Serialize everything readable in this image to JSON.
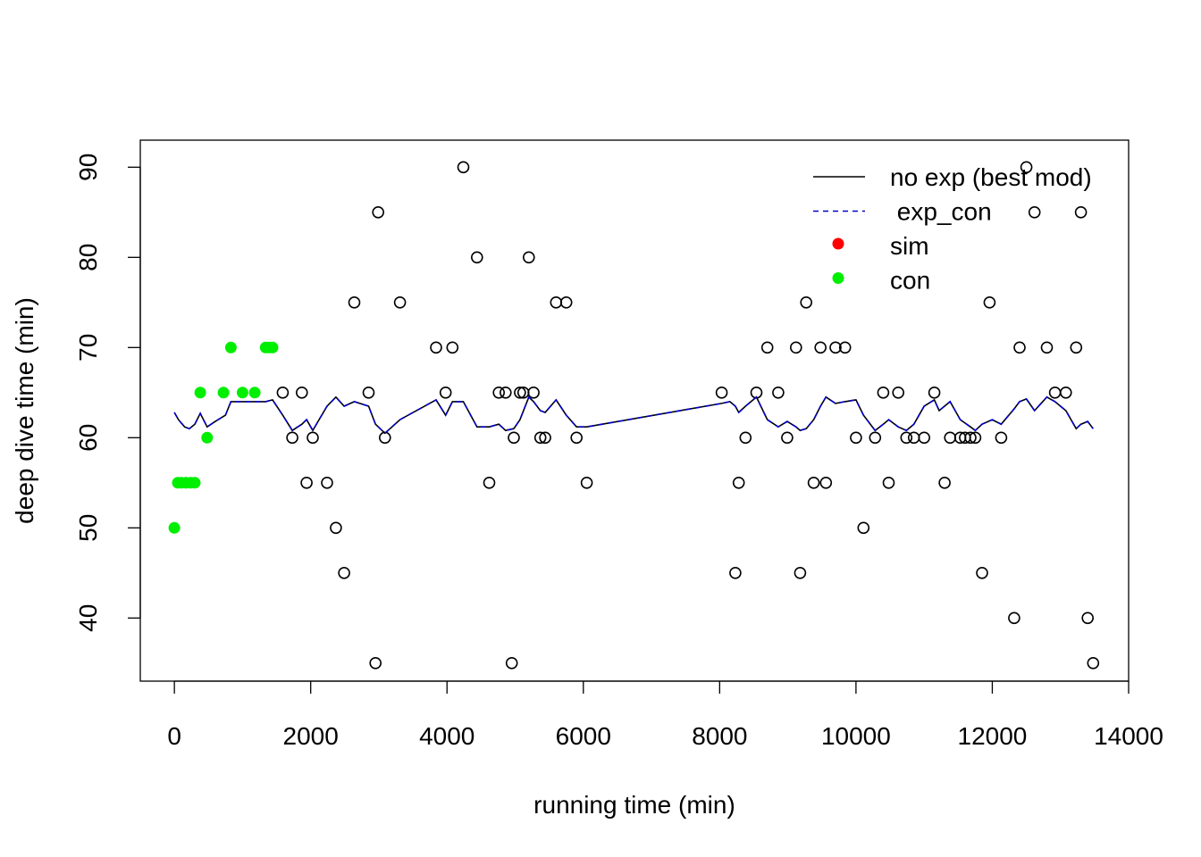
{
  "chart_data": {
    "type": "scatter",
    "title": "",
    "xlabel": "running time (min)",
    "ylabel": "deep dive time (min)",
    "xlim": [
      -500,
      14000
    ],
    "ylim": [
      33,
      93
    ],
    "xticks": [
      "0",
      "2000",
      "4000",
      "6000",
      "8000",
      "10000",
      "12000",
      "14000"
    ],
    "yticks": [
      "40",
      "50",
      "60",
      "70",
      "80",
      "90"
    ],
    "grid": false,
    "legend_position": "top-right",
    "legend": [
      {
        "label": "no exp (best mod)",
        "kind": "line",
        "color": "#000000"
      },
      {
        "label": " exp_con",
        "kind": "dashed",
        "color": "#0000cd"
      },
      {
        "label": "sim",
        "kind": "dot",
        "color": "#ff0000"
      },
      {
        "label": "con",
        "kind": "dot",
        "color": "#00ee00"
      }
    ],
    "series": [
      {
        "name": "con",
        "kind": "filled-points",
        "color": "#00ee00",
        "points": [
          [
            0,
            50
          ],
          [
            50,
            55
          ],
          [
            100,
            55
          ],
          [
            170,
            55
          ],
          [
            240,
            55
          ],
          [
            300,
            55
          ],
          [
            380,
            65
          ],
          [
            480,
            60
          ],
          [
            720,
            65
          ],
          [
            830,
            70
          ],
          [
            1000,
            65
          ],
          [
            1180,
            65
          ],
          [
            1340,
            70
          ],
          [
            1390,
            70
          ],
          [
            1440,
            70
          ]
        ]
      },
      {
        "kind": "open-points",
        "color": "#000000",
        "points": [
          [
            1590,
            65
          ],
          [
            1730,
            60
          ],
          [
            1870,
            65
          ],
          [
            1940,
            55
          ],
          [
            2030,
            60
          ],
          [
            2240,
            55
          ],
          [
            2370,
            50
          ],
          [
            2490,
            45
          ],
          [
            2640,
            75
          ],
          [
            2850,
            65
          ],
          [
            2950,
            35
          ],
          [
            2990,
            85
          ],
          [
            3090,
            60
          ],
          [
            3310,
            75
          ],
          [
            3840,
            70
          ],
          [
            3980,
            65
          ],
          [
            4080,
            70
          ],
          [
            4240,
            90
          ],
          [
            4440,
            80
          ],
          [
            4620,
            55
          ],
          [
            4760,
            65
          ],
          [
            4860,
            65
          ],
          [
            4950,
            35
          ],
          [
            4980,
            60
          ],
          [
            5070,
            65
          ],
          [
            5120,
            65
          ],
          [
            5200,
            80
          ],
          [
            5270,
            65
          ],
          [
            5370,
            60
          ],
          [
            5440,
            60
          ],
          [
            5600,
            75
          ],
          [
            5750,
            75
          ],
          [
            5900,
            60
          ],
          [
            6050,
            55
          ],
          [
            8030,
            65
          ],
          [
            8230,
            45
          ],
          [
            8280,
            55
          ],
          [
            8380,
            60
          ],
          [
            8540,
            65
          ],
          [
            8700,
            70
          ],
          [
            8860,
            65
          ],
          [
            8990,
            60
          ],
          [
            9120,
            70
          ],
          [
            9180,
            45
          ],
          [
            9270,
            75
          ],
          [
            9380,
            55
          ],
          [
            9480,
            70
          ],
          [
            9560,
            55
          ],
          [
            9700,
            70
          ],
          [
            9840,
            70
          ],
          [
            10000,
            60
          ],
          [
            10110,
            50
          ],
          [
            10280,
            60
          ],
          [
            10400,
            65
          ],
          [
            10480,
            55
          ],
          [
            10620,
            65
          ],
          [
            10740,
            60
          ],
          [
            10850,
            60
          ],
          [
            11000,
            60
          ],
          [
            11150,
            65
          ],
          [
            11300,
            55
          ],
          [
            11380,
            60
          ],
          [
            11530,
            60
          ],
          [
            11600,
            60
          ],
          [
            11680,
            60
          ],
          [
            11750,
            60
          ],
          [
            11850,
            45
          ],
          [
            11960,
            75
          ],
          [
            12130,
            60
          ],
          [
            12320,
            40
          ],
          [
            12400,
            70
          ],
          [
            12500,
            90
          ],
          [
            12620,
            85
          ],
          [
            12800,
            70
          ],
          [
            12920,
            65
          ],
          [
            13080,
            65
          ],
          [
            13230,
            70
          ],
          [
            13300,
            85
          ],
          [
            13400,
            40
          ],
          [
            13480,
            35
          ]
        ]
      },
      {
        "name": "no exp (best mod)",
        "kind": "line",
        "color": "#000000",
        "points": [
          [
            0,
            62.8
          ],
          [
            60,
            62
          ],
          [
            150,
            61.2
          ],
          [
            220,
            61
          ],
          [
            300,
            61.5
          ],
          [
            380,
            62.7
          ],
          [
            480,
            61.2
          ],
          [
            600,
            61.8
          ],
          [
            750,
            62.5
          ],
          [
            830,
            64
          ],
          [
            1000,
            64
          ],
          [
            1200,
            64
          ],
          [
            1340,
            64
          ],
          [
            1440,
            64.2
          ],
          [
            1590,
            62.5
          ],
          [
            1730,
            60.8
          ],
          [
            1870,
            61.5
          ],
          [
            1940,
            62
          ],
          [
            2030,
            60.8
          ],
          [
            2240,
            63.5
          ],
          [
            2370,
            64.5
          ],
          [
            2490,
            63.5
          ],
          [
            2640,
            64
          ],
          [
            2850,
            63.5
          ],
          [
            2950,
            61.5
          ],
          [
            3090,
            60.5
          ],
          [
            3310,
            62
          ],
          [
            3840,
            64.2
          ],
          [
            3980,
            62.5
          ],
          [
            4080,
            64
          ],
          [
            4240,
            64
          ],
          [
            4440,
            61.2
          ],
          [
            4620,
            61.2
          ],
          [
            4760,
            61.5
          ],
          [
            4860,
            60.8
          ],
          [
            4980,
            61
          ],
          [
            5070,
            62
          ],
          [
            5200,
            64.5
          ],
          [
            5270,
            64
          ],
          [
            5370,
            63
          ],
          [
            5440,
            62.8
          ],
          [
            5600,
            64.2
          ],
          [
            5750,
            62.5
          ],
          [
            5900,
            61.2
          ],
          [
            6050,
            61.2
          ],
          [
            8030,
            63.8
          ],
          [
            8150,
            64
          ],
          [
            8230,
            63.5
          ],
          [
            8280,
            62.8
          ],
          [
            8380,
            63.5
          ],
          [
            8540,
            64.5
          ],
          [
            8700,
            62
          ],
          [
            8860,
            61.2
          ],
          [
            8990,
            61.8
          ],
          [
            9120,
            61.2
          ],
          [
            9180,
            60.8
          ],
          [
            9270,
            61
          ],
          [
            9380,
            62
          ],
          [
            9480,
            63.5
          ],
          [
            9560,
            64.5
          ],
          [
            9700,
            63.8
          ],
          [
            9840,
            64
          ],
          [
            10000,
            64.2
          ],
          [
            10110,
            62.5
          ],
          [
            10280,
            60.8
          ],
          [
            10400,
            61.5
          ],
          [
            10480,
            62
          ],
          [
            10620,
            61.2
          ],
          [
            10740,
            60.8
          ],
          [
            10850,
            61.5
          ],
          [
            11000,
            63.5
          ],
          [
            11150,
            64.2
          ],
          [
            11220,
            63
          ],
          [
            11380,
            64
          ],
          [
            11530,
            62
          ],
          [
            11680,
            61.2
          ],
          [
            11750,
            60.8
          ],
          [
            11850,
            61.5
          ],
          [
            12000,
            62
          ],
          [
            12130,
            61.5
          ],
          [
            12320,
            63.2
          ],
          [
            12400,
            64
          ],
          [
            12500,
            64.3
          ],
          [
            12620,
            63
          ],
          [
            12800,
            64.5
          ],
          [
            12920,
            64
          ],
          [
            13080,
            63
          ],
          [
            13230,
            61
          ],
          [
            13300,
            61.5
          ],
          [
            13400,
            61.8
          ],
          [
            13480,
            61
          ]
        ]
      }
    ]
  }
}
